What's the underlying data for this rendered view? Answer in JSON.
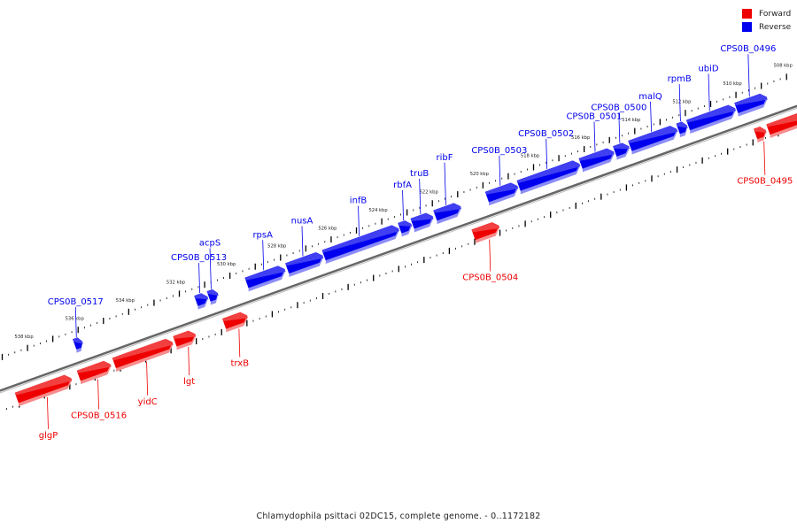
{
  "colors": {
    "forward": "#ee0000",
    "reverse": "#0000ee",
    "backbone": "#666666"
  },
  "legend": [
    {
      "label": "Forward",
      "color": "#ee0000"
    },
    {
      "label": "Reverse",
      "color": "#0000ee"
    }
  ],
  "caption": "Chlamydophila psittaci 02DC15, complete genome. - 0..1172182",
  "axis": {
    "unit": "kbp",
    "start_kbp": 539,
    "end_kbp": 508.5,
    "tick_labels": [
      "538 kbp",
      "536 kbp",
      "534 kbp",
      "532 kbp",
      "530 kbp",
      "528 kbp",
      "526 kbp",
      "524 kbp",
      "522 kbp",
      "520 kbp",
      "518 kbp",
      "516 kbp",
      "514 kbp",
      "512 kbp",
      "510 kbp",
      "508 kbp"
    ]
  },
  "genes": {
    "forward": [
      {
        "name": "glgP",
        "start": 539.0,
        "end": 536.85
      },
      {
        "name": "CPS0B_0516",
        "start": 536.55,
        "end": 535.3
      },
      {
        "name": "yidC",
        "start": 535.15,
        "end": 532.85
      },
      {
        "name": "lgt",
        "start": 532.75,
        "end": 531.95
      },
      {
        "name": "trxB",
        "start": 530.8,
        "end": 529.9
      },
      {
        "name": "CPS0B_0504",
        "start": 520.95,
        "end": 519.95
      },
      {
        "name": "CPS0B_0495",
        "start": 509.8,
        "end": 509.4
      },
      {
        "name": "",
        "start": 509.3,
        "end": 507.9
      }
    ],
    "reverse": [
      {
        "name": "CPS0B_0517",
        "start": 536.3,
        "end": 536.0
      },
      {
        "name": "CPS0B_0513",
        "start": 531.5,
        "end": 531.05
      },
      {
        "name": "acpS",
        "start": 531.0,
        "end": 530.65
      },
      {
        "name": "rpsA",
        "start": 529.5,
        "end": 528.0
      },
      {
        "name": "nusA",
        "start": 527.9,
        "end": 526.5
      },
      {
        "name": "infB",
        "start": 526.45,
        "end": 523.5
      },
      {
        "name": "rbfA",
        "start": 523.45,
        "end": 523.0
      },
      {
        "name": "truB",
        "start": 522.95,
        "end": 522.15
      },
      {
        "name": "ribF",
        "start": 522.05,
        "end": 521.05
      },
      {
        "name": "CPS0B_0503",
        "start": 520.0,
        "end": 518.8
      },
      {
        "name": "CPS0B_0502",
        "start": 518.75,
        "end": 516.35
      },
      {
        "name": "CPS0B_0501",
        "start": 516.3,
        "end": 515.0
      },
      {
        "name": "CPS0B_0500",
        "start": 514.95,
        "end": 514.4
      },
      {
        "name": "malQ",
        "start": 514.35,
        "end": 512.5
      },
      {
        "name": "rpmB",
        "start": 512.45,
        "end": 512.1
      },
      {
        "name": "ubiD",
        "start": 512.05,
        "end": 510.2
      },
      {
        "name": "CPS0B_0496",
        "start": 510.15,
        "end": 508.95
      }
    ]
  }
}
